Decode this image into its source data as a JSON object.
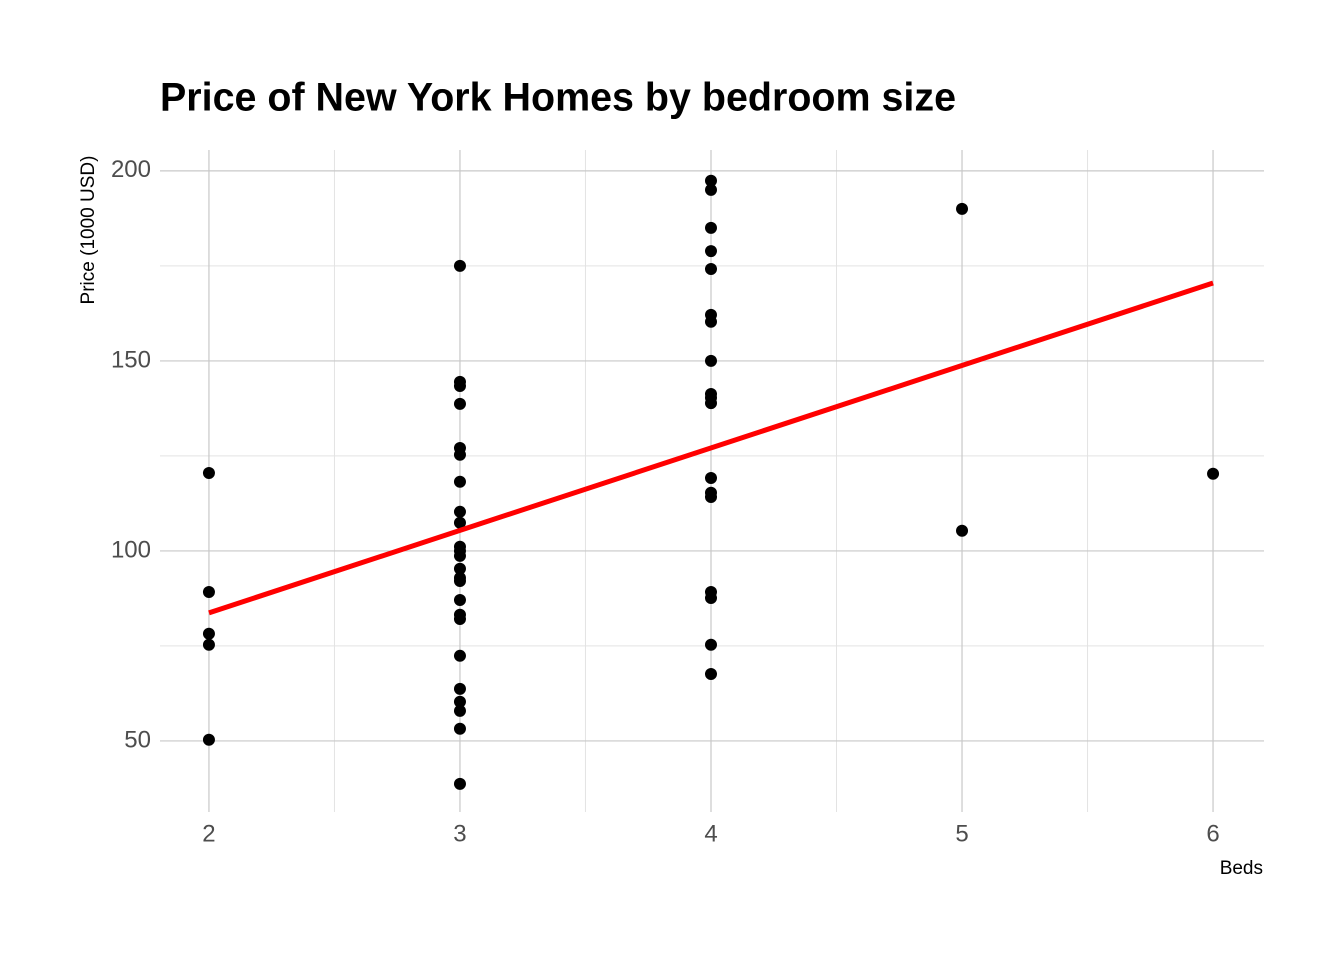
{
  "chart_data": {
    "type": "scatter",
    "title": "Price of New York Homes by bedroom size",
    "x_label": "Beds",
    "y_label": "Price (1000 USD)",
    "x": [
      2,
      2,
      2,
      2,
      2,
      3,
      3,
      3,
      3,
      3,
      3,
      3,
      3,
      3,
      3,
      3,
      3,
      3,
      3,
      3,
      3,
      3,
      3,
      3,
      3,
      3,
      3,
      3,
      3,
      4,
      4,
      4,
      4,
      4,
      4,
      4,
      4,
      4,
      4,
      4,
      4,
      4,
      4,
      4,
      4,
      4,
      4,
      5,
      5,
      6
    ],
    "values": [
      120.5,
      89.2,
      78.2,
      75.3,
      50.3,
      175,
      144.5,
      143.4,
      138.7,
      127.1,
      125.3,
      118.2,
      110.3,
      107.4,
      101.1,
      100,
      98.7,
      95.3,
      92.9,
      92.1,
      87.1,
      83.2,
      82.1,
      72.4,
      63.7,
      60.3,
      57.9,
      53.2,
      38.7,
      197.4,
      195,
      185,
      178.9,
      174.2,
      162.1,
      160.3,
      150,
      141.3,
      140.3,
      138.9,
      119.2,
      115.3,
      114.2,
      89.2,
      87.6,
      75.3,
      67.6,
      190,
      105.3,
      120.3
    ],
    "color": "#000000",
    "trend_line": {
      "x": [
        2,
        6
      ],
      "values": [
        83.7,
        170.5
      ],
      "color": "#ff0000"
    },
    "xlim": [
      1.805,
      6.203
    ],
    "ylim": [
      31.3,
      205.5
    ],
    "xticks": [
      2,
      3,
      4,
      5,
      6
    ],
    "yticks": [
      50,
      100,
      150,
      200
    ],
    "grid": true
  }
}
